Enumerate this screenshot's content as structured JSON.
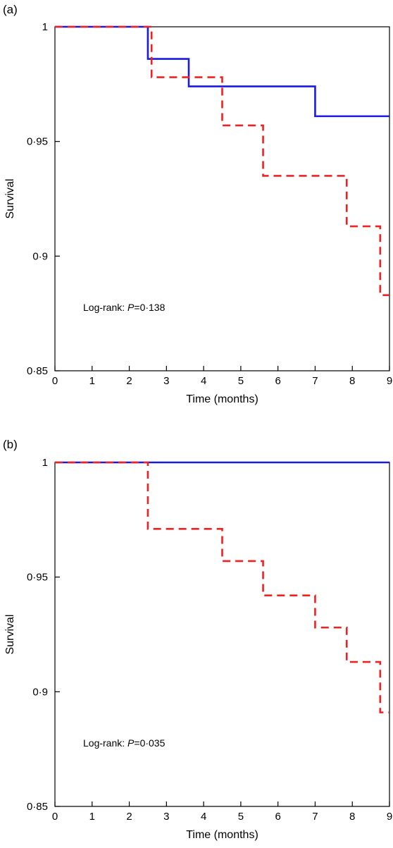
{
  "chart_data": [
    {
      "panel": "(a)",
      "type": "line",
      "step": true,
      "xlabel": "Time (months)",
      "ylabel": "Survival",
      "xlim": [
        0,
        9
      ],
      "ylim": [
        0.85,
        1
      ],
      "xticks": [
        "0",
        "1",
        "2",
        "3",
        "4",
        "5",
        "6",
        "7",
        "8",
        "9"
      ],
      "yticks": [
        "0·85",
        "0·9",
        "0·95",
        "1"
      ],
      "annotation": {
        "prefix": "Log-rank: ",
        "p": "P",
        "value": "=0·138"
      },
      "series": [
        {
          "color": "#1a1ae0",
          "dash": false,
          "x": [
            0,
            2.5,
            2.5,
            3.6,
            3.6,
            7.0,
            7.0,
            9.0
          ],
          "y": [
            1,
            1,
            0.986,
            0.986,
            0.974,
            0.974,
            0.961,
            0.961
          ]
        },
        {
          "color": "#ee2222",
          "dash": true,
          "x": [
            0,
            2.6,
            2.6,
            4.5,
            4.5,
            5.6,
            5.6,
            7.85,
            7.85,
            8.75,
            8.75,
            9.0
          ],
          "y": [
            1,
            1,
            0.978,
            0.978,
            0.957,
            0.957,
            0.935,
            0.935,
            0.913,
            0.913,
            0.883,
            0.883
          ]
        }
      ]
    },
    {
      "panel": "(b)",
      "type": "line",
      "step": true,
      "xlabel": "Time (months)",
      "ylabel": "Survival",
      "xlim": [
        0,
        9
      ],
      "ylim": [
        0.85,
        1
      ],
      "xticks": [
        "0",
        "1",
        "2",
        "3",
        "4",
        "5",
        "6",
        "7",
        "8",
        "9"
      ],
      "yticks": [
        "0·85",
        "0·9",
        "0·95",
        "1"
      ],
      "annotation": {
        "prefix": "Log-rank: ",
        "p": "P",
        "value": "=0·035"
      },
      "series": [
        {
          "color": "#1a1ae0",
          "dash": false,
          "x": [
            0,
            9.0
          ],
          "y": [
            1,
            1
          ]
        },
        {
          "color": "#ee2222",
          "dash": true,
          "x": [
            0,
            2.5,
            2.5,
            4.5,
            4.5,
            5.6,
            5.6,
            7.0,
            7.0,
            7.85,
            7.85,
            8.75,
            8.75,
            9.0
          ],
          "y": [
            1,
            1,
            0.971,
            0.971,
            0.957,
            0.957,
            0.942,
            0.942,
            0.928,
            0.928,
            0.913,
            0.913,
            0.891,
            0.891
          ]
        }
      ]
    }
  ]
}
